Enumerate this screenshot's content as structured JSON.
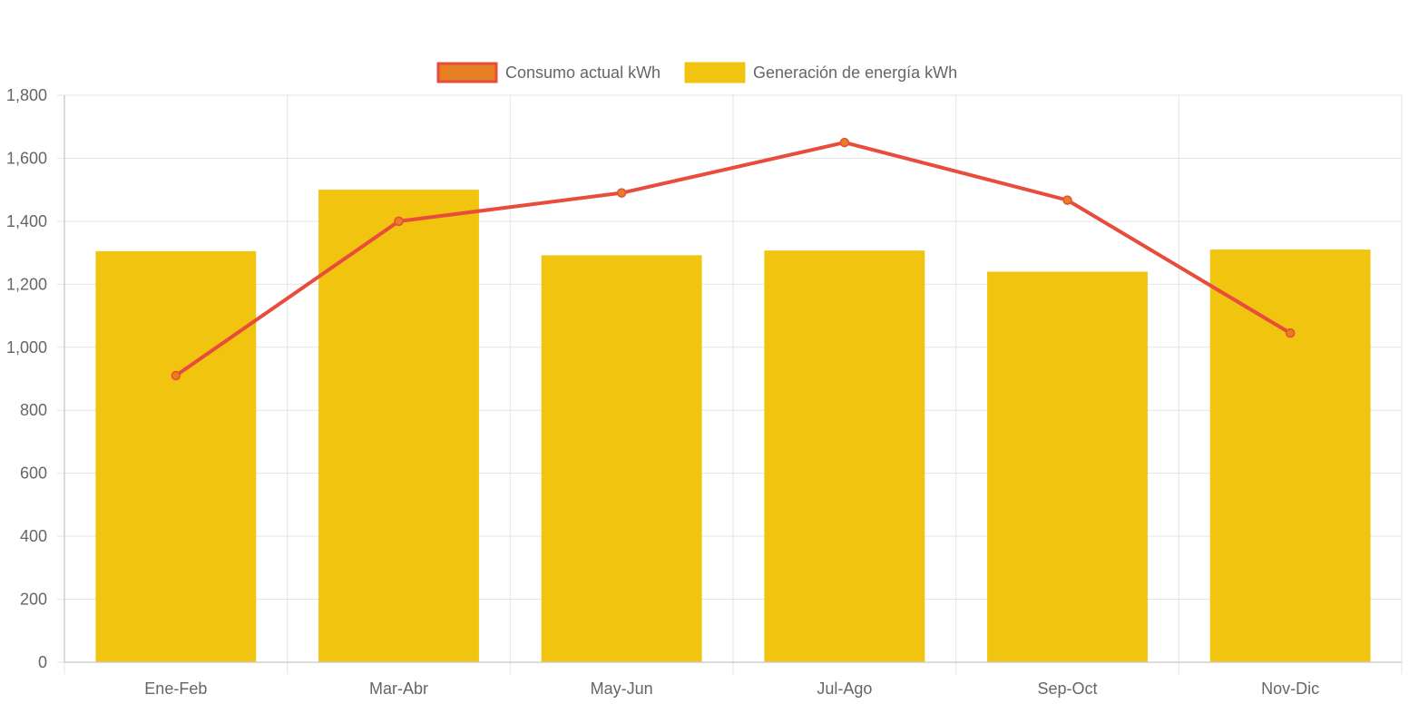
{
  "chart_data": {
    "type": "bar",
    "categories": [
      "Ene-Feb",
      "Mar-Abr",
      "May-Jun",
      "Jul-Ago",
      "Sep-Oct",
      "Nov-Dic"
    ],
    "series": [
      {
        "name": "Consumo actual kWh",
        "type": "line",
        "values": [
          910,
          1400,
          1490,
          1650,
          1467,
          1045
        ],
        "color": "#e74c3c",
        "point_color": "#e67e22"
      },
      {
        "name": "Generación de energía kWh",
        "type": "bar",
        "values": [
          1305,
          1500,
          1292,
          1307,
          1240,
          1310
        ],
        "color": "#f1c40f"
      }
    ],
    "ylim": [
      0,
      1800
    ],
    "yticks": [
      "0",
      "200",
      "400",
      "600",
      "800",
      "1,000",
      "1,200",
      "1,400",
      "1,600",
      "1,800"
    ],
    "ytick_values": [
      0,
      200,
      400,
      600,
      800,
      1000,
      1200,
      1400,
      1600,
      1800
    ],
    "grid": true,
    "legend_position": "top",
    "legend": [
      {
        "label": "Consumo actual kWh",
        "fill": "#e67e22",
        "stroke": "#e74c3c"
      },
      {
        "label": "Generación de energía kWh",
        "fill": "#f1c40f",
        "stroke": "#f1c40f"
      }
    ],
    "colors": {
      "grid": "#e5e5e5",
      "text": "#666666"
    }
  }
}
